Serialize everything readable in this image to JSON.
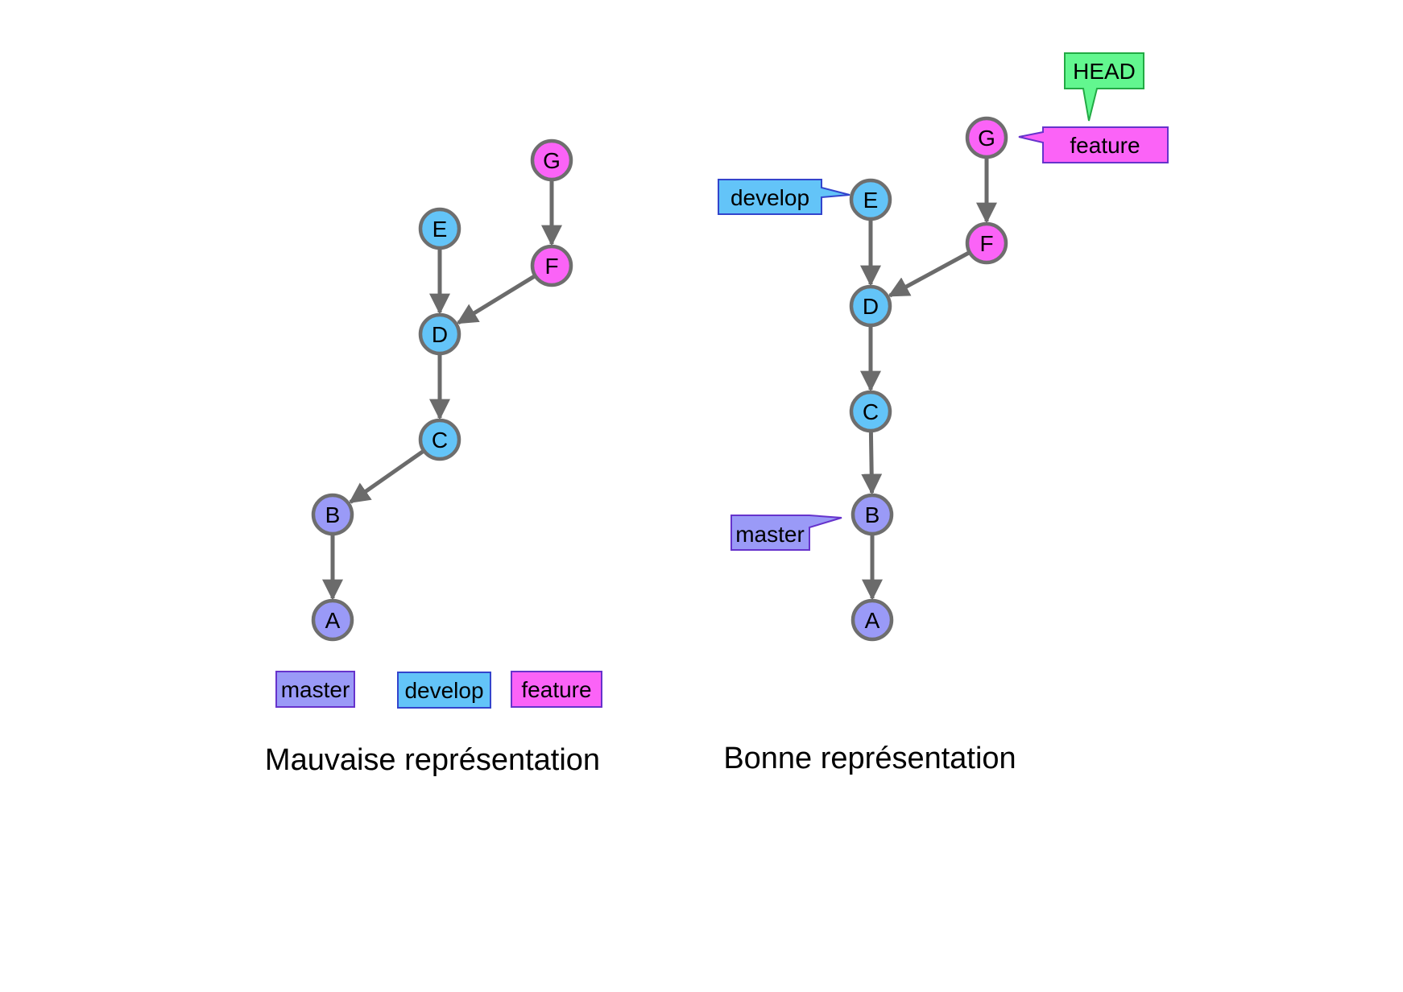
{
  "colors": {
    "master": "#9a9af7",
    "develop": "#63c4f8",
    "feature": "#fb63f7",
    "head": "#62f78f",
    "node_stroke": "#6e6e6e",
    "arrow": "#6b6b6b",
    "label_border_master": "#6633cc",
    "label_border_develop": "#3344cc",
    "label_border_feature": "#6633cc",
    "label_border_head": "#22aa44"
  },
  "left": {
    "caption": "Mauvaise représentation",
    "nodes": [
      {
        "id": "A",
        "branch": "master"
      },
      {
        "id": "B",
        "branch": "master"
      },
      {
        "id": "C",
        "branch": "develop"
      },
      {
        "id": "D",
        "branch": "develop"
      },
      {
        "id": "E",
        "branch": "develop"
      },
      {
        "id": "F",
        "branch": "feature"
      },
      {
        "id": "G",
        "branch": "feature"
      }
    ],
    "edges": [
      [
        "G",
        "F"
      ],
      [
        "F",
        "D"
      ],
      [
        "E",
        "D"
      ],
      [
        "D",
        "C"
      ],
      [
        "C",
        "B"
      ],
      [
        "B",
        "A"
      ]
    ],
    "legend": [
      {
        "label": "master",
        "branch": "master"
      },
      {
        "label": "develop",
        "branch": "develop"
      },
      {
        "label": "feature",
        "branch": "feature"
      }
    ]
  },
  "right": {
    "caption": "Bonne représentation",
    "nodes": [
      {
        "id": "A",
        "branch": "master"
      },
      {
        "id": "B",
        "branch": "master"
      },
      {
        "id": "C",
        "branch": "develop"
      },
      {
        "id": "D",
        "branch": "develop"
      },
      {
        "id": "E",
        "branch": "develop"
      },
      {
        "id": "F",
        "branch": "feature"
      },
      {
        "id": "G",
        "branch": "feature"
      }
    ],
    "edges": [
      [
        "G",
        "F"
      ],
      [
        "F",
        "D"
      ],
      [
        "E",
        "D"
      ],
      [
        "D",
        "C"
      ],
      [
        "C",
        "B"
      ],
      [
        "B",
        "A"
      ]
    ],
    "refs": [
      {
        "label": "develop",
        "branch": "develop",
        "target": "E"
      },
      {
        "label": "master",
        "branch": "master",
        "target": "B"
      },
      {
        "label": "feature",
        "branch": "feature",
        "target": "G"
      },
      {
        "label": "HEAD",
        "branch": "head",
        "target": "feature"
      }
    ]
  }
}
